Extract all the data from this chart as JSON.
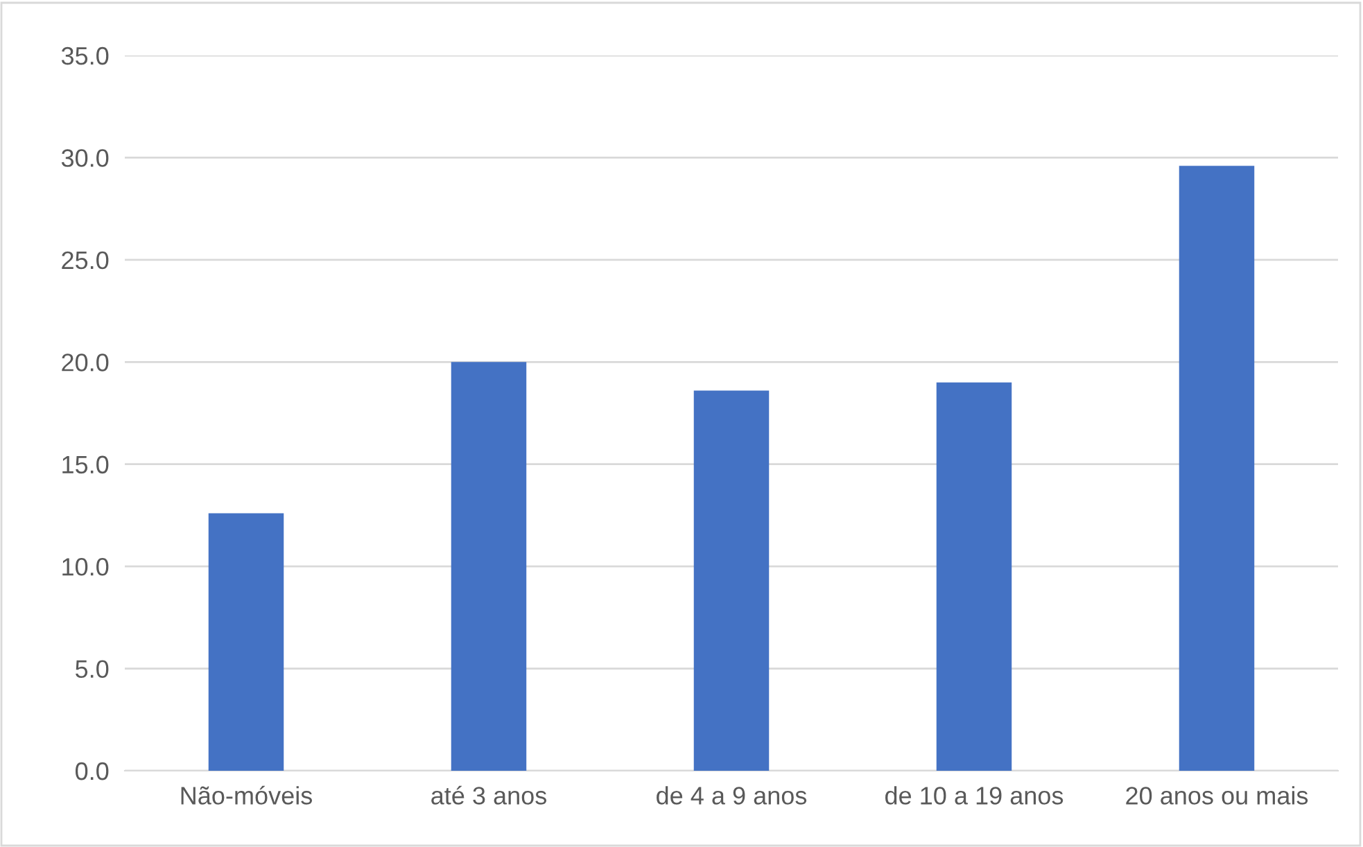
{
  "chart_data": {
    "type": "bar",
    "categories": [
      "Não-móveis",
      "até 3 anos",
      "de 4 a 9 anos",
      "de 10 a 19 anos",
      "20 anos ou mais"
    ],
    "values": [
      12.6,
      20.0,
      18.6,
      19.0,
      29.6
    ],
    "color": "#4472c4",
    "ylim": [
      0,
      35
    ],
    "yticks": [
      {
        "value": 0,
        "label": "0.0"
      },
      {
        "value": 5,
        "label": "5.0"
      },
      {
        "value": 10,
        "label": "10.0"
      },
      {
        "value": 15,
        "label": "15.0"
      },
      {
        "value": 20,
        "label": "20.0"
      },
      {
        "value": 25,
        "label": "25.0"
      },
      {
        "value": 30,
        "label": "30.0"
      },
      {
        "value": 35,
        "label": "35.0"
      }
    ],
    "grid": "y",
    "legend": false
  }
}
